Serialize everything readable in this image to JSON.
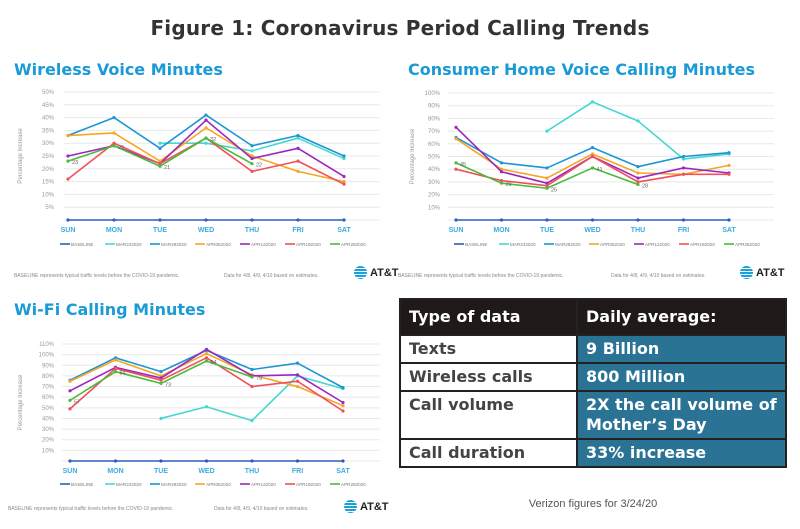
{
  "figure_title": "Figure 1: Coronavirus Period Calling Trends",
  "footnotes": {
    "baseline_note": "BASELINE represents  typical traffic levels before the COVID-19 pandemic.",
    "estimate_note": "Data for 4/8, 4/9, 4/10 based on estimates.",
    "logo_text": "AT&T"
  },
  "series_colors": {
    "BASELINE": "#2a5fbf",
    "MAR242020": "#45d8d0",
    "MAR292020": "#1e95d3",
    "APR052020": "#f5a623",
    "APR122020": "#9b27c0",
    "APR192020": "#f0505a",
    "APR262020": "#4cba3a"
  },
  "chart_data": [
    {
      "type": "line",
      "title": "Wireless Voice Minutes",
      "xlabel": "",
      "ylabel": "Percentage Increase",
      "ylim": [
        0,
        50
      ],
      "yticks": [
        5,
        10,
        15,
        20,
        25,
        30,
        35,
        40,
        45,
        50
      ],
      "ytick_labels": [
        "5%",
        "10%",
        "15%",
        "20%",
        "25%",
        "30%",
        "35%",
        "40%",
        "45%",
        "50%"
      ],
      "categories": [
        "SUN",
        "MON",
        "TUE",
        "WED",
        "THU",
        "FRI",
        "SAT"
      ],
      "grid": true,
      "legend": "bottom",
      "series": [
        {
          "name": "BASELINE",
          "values": [
            0,
            0,
            0,
            0,
            0,
            0,
            0
          ]
        },
        {
          "name": "MAR242020",
          "values": [
            null,
            null,
            30,
            30,
            27,
            32,
            24
          ]
        },
        {
          "name": "MAR292020",
          "values": [
            33,
            40,
            28,
            41,
            29,
            33,
            25
          ]
        },
        {
          "name": "APR052020",
          "values": [
            33,
            34,
            23,
            36,
            25,
            19,
            15
          ]
        },
        {
          "name": "APR122020",
          "values": [
            25,
            29,
            22,
            39,
            24,
            28,
            17
          ]
        },
        {
          "name": "APR192020",
          "values": [
            16,
            30,
            22,
            32,
            19,
            23,
            14
          ]
        },
        {
          "name": "APR262020",
          "values": [
            23,
            29,
            21,
            32,
            22,
            null,
            null
          ],
          "data_labels": [
            "23",
            "29",
            "21",
            "32",
            "22",
            null,
            null
          ]
        }
      ]
    },
    {
      "type": "line",
      "title": "Consumer Home Voice Calling Minutes",
      "xlabel": "",
      "ylabel": "Percentage Increase",
      "ylim": [
        0,
        100
      ],
      "yticks": [
        10,
        20,
        30,
        40,
        50,
        60,
        70,
        80,
        90,
        100
      ],
      "ytick_labels": [
        "10%",
        "20%",
        "30%",
        "40%",
        "50%",
        "60%",
        "70%",
        "80%",
        "90%",
        "100%"
      ],
      "categories": [
        "SUN",
        "MON",
        "TUE",
        "WED",
        "THU",
        "FRI",
        "SAT"
      ],
      "grid": true,
      "legend": "bottom",
      "series": [
        {
          "name": "BASELINE",
          "values": [
            0,
            0,
            0,
            0,
            0,
            0,
            0
          ]
        },
        {
          "name": "MAR242020",
          "values": [
            null,
            null,
            70,
            93,
            78,
            48,
            52
          ]
        },
        {
          "name": "MAR292020",
          "values": [
            65,
            45,
            41,
            57,
            42,
            50,
            53
          ]
        },
        {
          "name": "APR052020",
          "values": [
            64,
            40,
            33,
            52,
            37,
            36,
            43
          ]
        },
        {
          "name": "APR122020",
          "values": [
            73,
            38,
            29,
            50,
            33,
            41,
            37
          ]
        },
        {
          "name": "APR192020",
          "values": [
            40,
            31,
            27,
            50,
            30,
            36,
            36
          ]
        },
        {
          "name": "APR262020",
          "values": [
            45,
            29,
            25,
            41,
            28,
            null,
            null
          ],
          "data_labels": [
            "45",
            "29",
            "25",
            "41",
            "28",
            null,
            null
          ]
        }
      ]
    },
    {
      "type": "line",
      "title": "Wi-Fi Calling Minutes",
      "xlabel": "",
      "ylabel": "Percentage Increase",
      "ylim": [
        0,
        110
      ],
      "yticks": [
        10,
        20,
        30,
        40,
        50,
        60,
        70,
        80,
        90,
        100,
        110
      ],
      "ytick_labels": [
        "10%",
        "20%",
        "30%",
        "40%",
        "50%",
        "60%",
        "70%",
        "80%",
        "90%",
        "100%",
        "110%"
      ],
      "categories": [
        "SUN",
        "MON",
        "TUE",
        "WED",
        "THU",
        "FRI",
        "SAT"
      ],
      "grid": true,
      "legend": "bottom",
      "series": [
        {
          "name": "BASELINE",
          "values": [
            0,
            0,
            0,
            0,
            0,
            0,
            0
          ]
        },
        {
          "name": "MAR242020",
          "values": [
            null,
            null,
            40,
            51,
            38,
            80,
            68
          ]
        },
        {
          "name": "MAR292020",
          "values": [
            76,
            97,
            84,
            104,
            86,
            92,
            69
          ]
        },
        {
          "name": "APR052020",
          "values": [
            75,
            95,
            80,
            101,
            81,
            70,
            52
          ]
        },
        {
          "name": "APR122020",
          "values": [
            66,
            88,
            78,
            105,
            80,
            81,
            55
          ]
        },
        {
          "name": "APR192020",
          "values": [
            49,
            87,
            76,
            97,
            70,
            75,
            47
          ]
        },
        {
          "name": "APR262020",
          "values": [
            57,
            84,
            73,
            94,
            79,
            null,
            null
          ],
          "data_labels": [
            "57",
            "84",
            "73",
            "94",
            "79",
            null,
            null
          ]
        }
      ]
    }
  ],
  "table": {
    "headers": [
      "Type of data",
      "Daily average:"
    ],
    "rows": [
      [
        "Texts",
        "9 Billion"
      ],
      [
        "Wireless calls",
        "800 Million"
      ],
      [
        "Call volume",
        "2X the call volume of Mother’s Day"
      ],
      [
        "Call duration",
        "33% increase"
      ]
    ],
    "caption": "Verizon figures for 3/24/20"
  }
}
